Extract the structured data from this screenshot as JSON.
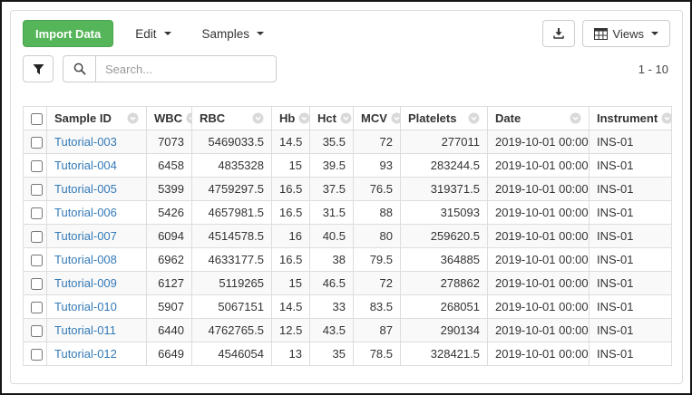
{
  "toolbar": {
    "import_label": "Import Data",
    "edit_label": "Edit",
    "samples_label": "Samples",
    "views_label": "Views",
    "search_placeholder": "Search...",
    "pagination": "1 - 10"
  },
  "icons": {
    "filter": "funnel-icon",
    "search": "magnifier-icon",
    "export": "download-icon",
    "views": "table-grid-icon",
    "dropdown": "caret-down-icon",
    "column_menu": "circle-chevron-icon"
  },
  "colors": {
    "accent_green": "#55b559",
    "link_blue": "#337ab7",
    "stripe": "#f9f9f9",
    "border": "#ddd"
  },
  "table": {
    "columns": [
      {
        "key": "id",
        "label": "Sample ID"
      },
      {
        "key": "wbc",
        "label": "WBC"
      },
      {
        "key": "rbc",
        "label": "RBC"
      },
      {
        "key": "hb",
        "label": "Hb"
      },
      {
        "key": "hct",
        "label": "Hct"
      },
      {
        "key": "mcv",
        "label": "MCV"
      },
      {
        "key": "platelets",
        "label": "Platelets"
      },
      {
        "key": "date",
        "label": "Date"
      },
      {
        "key": "instrument",
        "label": "Instrument"
      }
    ],
    "rows": [
      {
        "id": "Tutorial-003",
        "wbc": "7073",
        "rbc": "5469033.5",
        "hb": "14.5",
        "hct": "35.5",
        "mcv": "72",
        "platelets": "277011",
        "date": "2019-10-01 00:00",
        "instrument": "INS-01"
      },
      {
        "id": "Tutorial-004",
        "wbc": "6458",
        "rbc": "4835328",
        "hb": "15",
        "hct": "39.5",
        "mcv": "93",
        "platelets": "283244.5",
        "date": "2019-10-01 00:00",
        "instrument": "INS-01"
      },
      {
        "id": "Tutorial-005",
        "wbc": "5399",
        "rbc": "4759297.5",
        "hb": "16.5",
        "hct": "37.5",
        "mcv": "76.5",
        "platelets": "319371.5",
        "date": "2019-10-01 00:00",
        "instrument": "INS-01"
      },
      {
        "id": "Tutorial-006",
        "wbc": "5426",
        "rbc": "4657981.5",
        "hb": "16.5",
        "hct": "31.5",
        "mcv": "88",
        "platelets": "315093",
        "date": "2019-10-01 00:00",
        "instrument": "INS-01"
      },
      {
        "id": "Tutorial-007",
        "wbc": "6094",
        "rbc": "4514578.5",
        "hb": "16",
        "hct": "40.5",
        "mcv": "80",
        "platelets": "259620.5",
        "date": "2019-10-01 00:00",
        "instrument": "INS-01"
      },
      {
        "id": "Tutorial-008",
        "wbc": "6962",
        "rbc": "4633177.5",
        "hb": "16.5",
        "hct": "38",
        "mcv": "79.5",
        "platelets": "364885",
        "date": "2019-10-01 00:00",
        "instrument": "INS-01"
      },
      {
        "id": "Tutorial-009",
        "wbc": "6127",
        "rbc": "5119265",
        "hb": "15",
        "hct": "46.5",
        "mcv": "72",
        "platelets": "278862",
        "date": "2019-10-01 00:00",
        "instrument": "INS-01"
      },
      {
        "id": "Tutorial-010",
        "wbc": "5907",
        "rbc": "5067151",
        "hb": "14.5",
        "hct": "33",
        "mcv": "83.5",
        "platelets": "268051",
        "date": "2019-10-01 00:00",
        "instrument": "INS-01"
      },
      {
        "id": "Tutorial-011",
        "wbc": "6440",
        "rbc": "4762765.5",
        "hb": "12.5",
        "hct": "43.5",
        "mcv": "87",
        "platelets": "290134",
        "date": "2019-10-01 00:00",
        "instrument": "INS-01"
      },
      {
        "id": "Tutorial-012",
        "wbc": "6649",
        "rbc": "4546054",
        "hb": "13",
        "hct": "35",
        "mcv": "78.5",
        "platelets": "328421.5",
        "date": "2019-10-01 00:00",
        "instrument": "INS-01"
      }
    ]
  }
}
